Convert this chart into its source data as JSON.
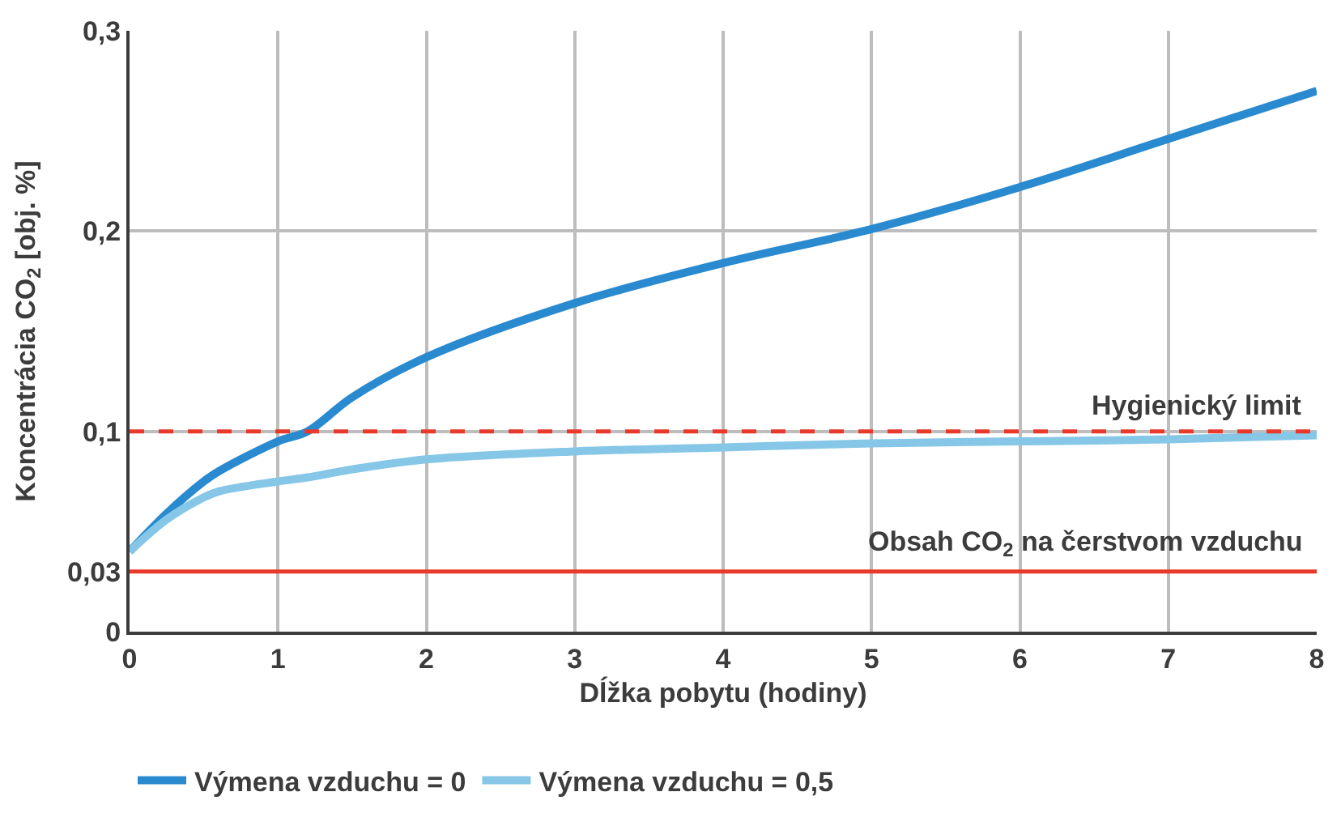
{
  "chart_data": {
    "type": "line",
    "xlabel": "Dĺžka pobytu (hodiny)",
    "ylabel": "Koncentrácia CO$_{2}$ [obj. %]",
    "x": [
      0,
      0.25,
      0.5,
      0.6,
      1,
      1.2,
      1.5,
      2,
      3,
      4,
      5,
      6,
      7,
      8
    ],
    "series": [
      {
        "name": "Výmena vzduchu = 0",
        "color": "#2a8ad0",
        "values": [
          0.04,
          0.059,
          0.075,
          0.08,
          0.095,
          0.1,
          0.117,
          0.137,
          0.164,
          0.184,
          0.201,
          0.222,
          0.246,
          0.27
        ]
      },
      {
        "name": "Výmena vzduchu = 0,5",
        "color": "#86c7e8",
        "values": [
          0.04,
          0.056,
          0.067,
          0.07,
          0.075,
          0.077,
          0.081,
          0.086,
          0.09,
          0.092,
          0.094,
          0.095,
          0.096,
          0.098
        ]
      }
    ],
    "xlim": [
      0,
      8
    ],
    "xticks": [
      0,
      1,
      2,
      3,
      4,
      5,
      6,
      7,
      8
    ],
    "ylim": [
      0,
      0.3
    ],
    "yticks": [
      {
        "value": 0,
        "label": "0"
      },
      {
        "value": 0.03,
        "label": "0,03"
      },
      {
        "value": 0.1,
        "label": "0,1"
      },
      {
        "value": 0.2,
        "label": "0,2"
      },
      {
        "value": 0.3,
        "label": "0,3"
      }
    ],
    "ref_lines": [
      {
        "axis": "y",
        "value": 0.1,
        "label": "Hygienický limit",
        "color": "#e8392a",
        "line_style": "dashed"
      },
      {
        "axis": "y",
        "value": 0.03,
        "label": "Obsah CO$_{2}$ na čerstvom vzduchu",
        "color": "#e8392a",
        "line_style": "solid"
      }
    ],
    "grid": true,
    "legend": "bottom",
    "marker": "none",
    "line_style": "solid"
  }
}
